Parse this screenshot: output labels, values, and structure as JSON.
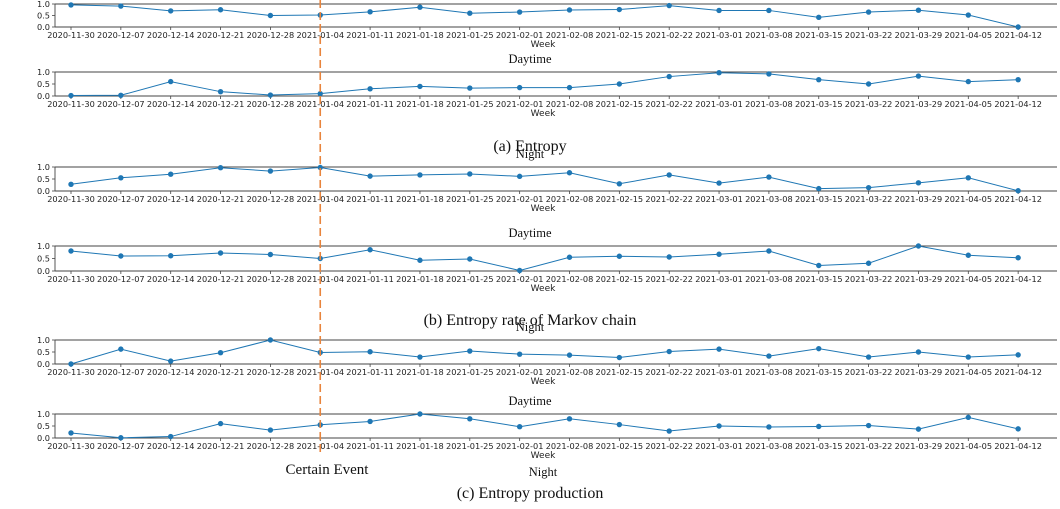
{
  "chart_data": [
    {
      "type": "line",
      "group": "(a) Entropy",
      "title": "",
      "xlabel": "Week",
      "ylabel": "",
      "ylim": [
        0,
        1
      ],
      "yticks": [
        "0.0",
        "0.5",
        "1.0"
      ],
      "categories": [
        "2020-11-30",
        "2020-12-07",
        "2020-12-14",
        "2020-12-21",
        "2020-12-28",
        "2021-01-04",
        "2021-01-11",
        "2021-01-18",
        "2021-01-25",
        "2021-02-01",
        "2021-02-08",
        "2021-02-15",
        "2021-02-22",
        "2021-03-01",
        "2021-03-08",
        "2021-03-15",
        "2021-03-22",
        "2021-03-29",
        "2021-04-05",
        "2021-04-12"
      ],
      "series": [
        {
          "values": [
            0.96,
            0.91,
            0.7,
            0.75,
            0.5,
            0.52,
            0.66,
            0.86,
            0.6,
            0.65,
            0.74,
            0.76,
            0.93,
            0.72,
            0.72,
            0.42,
            0.65,
            0.73,
            0.52,
            0.0
          ]
        }
      ],
      "grid": false
    },
    {
      "type": "line",
      "group": "(a) Entropy",
      "title": "Daytime",
      "xlabel": "Week",
      "ylabel": "",
      "ylim": [
        0,
        1
      ],
      "yticks": [
        "0.0",
        "0.5",
        "1.0"
      ],
      "categories": [
        "2020-11-30",
        "2020-12-07",
        "2020-12-14",
        "2020-12-21",
        "2020-12-28",
        "2021-01-04",
        "2021-01-11",
        "2021-01-18",
        "2021-01-25",
        "2021-02-01",
        "2021-02-08",
        "2021-02-15",
        "2021-02-22",
        "2021-03-01",
        "2021-03-08",
        "2021-03-15",
        "2021-03-22",
        "2021-03-29",
        "2021-04-05",
        "2021-04-12"
      ],
      "series": [
        {
          "values": [
            0.02,
            0.03,
            0.6,
            0.18,
            0.04,
            0.1,
            0.3,
            0.4,
            0.33,
            0.35,
            0.35,
            0.5,
            0.81,
            0.97,
            0.92,
            0.68,
            0.5,
            0.83,
            0.6,
            0.68
          ]
        }
      ],
      "grid": false
    },
    {
      "type": "line",
      "group": "(b) Entropy rate of Markov chain",
      "title": "Night",
      "xlabel": "Week",
      "ylabel": "",
      "ylim": [
        0,
        1
      ],
      "yticks": [
        "0.0",
        "0.5",
        "1.0"
      ],
      "categories": [
        "2020-11-30",
        "2020-12-07",
        "2020-12-14",
        "2020-12-21",
        "2020-12-28",
        "2021-01-04",
        "2021-01-11",
        "2021-01-18",
        "2021-01-25",
        "2021-02-01",
        "2021-02-08",
        "2021-02-15",
        "2021-02-22",
        "2021-03-01",
        "2021-03-08",
        "2021-03-15",
        "2021-03-22",
        "2021-03-29",
        "2021-04-05",
        "2021-04-12"
      ],
      "series": [
        {
          "values": [
            0.28,
            0.55,
            0.7,
            0.97,
            0.83,
            0.98,
            0.62,
            0.67,
            0.71,
            0.61,
            0.76,
            0.3,
            0.67,
            0.33,
            0.58,
            0.1,
            0.14,
            0.34,
            0.55,
            0.01
          ]
        }
      ],
      "grid": false
    },
    {
      "type": "line",
      "group": "(b) Entropy rate of Markov chain",
      "title": "Daytime",
      "xlabel": "Week",
      "ylabel": "",
      "ylim": [
        0,
        1
      ],
      "yticks": [
        "0.0",
        "0.5",
        "1.0"
      ],
      "categories": [
        "2020-11-30",
        "2020-12-07",
        "2020-12-14",
        "2020-12-21",
        "2020-12-28",
        "2021-01-04",
        "2021-01-11",
        "2021-01-18",
        "2021-01-25",
        "2021-02-01",
        "2021-02-08",
        "2021-02-15",
        "2021-02-22",
        "2021-03-01",
        "2021-03-08",
        "2021-03-15",
        "2021-03-22",
        "2021-03-29",
        "2021-04-05",
        "2021-04-12"
      ],
      "series": [
        {
          "values": [
            0.8,
            0.6,
            0.61,
            0.72,
            0.66,
            0.5,
            0.85,
            0.43,
            0.48,
            0.02,
            0.55,
            0.59,
            0.56,
            0.67,
            0.8,
            0.22,
            0.31,
            1.0,
            0.63,
            0.53
          ]
        }
      ],
      "grid": false
    },
    {
      "type": "line",
      "group": "(c) Entropy production",
      "title": "Night",
      "xlabel": "Week",
      "ylabel": "",
      "ylim": [
        0,
        1
      ],
      "yticks": [
        "0.0",
        "0.5",
        "1.0"
      ],
      "categories": [
        "2020-11-30",
        "2020-12-07",
        "2020-12-14",
        "2020-12-21",
        "2020-12-28",
        "2021-01-04",
        "2021-01-11",
        "2021-01-18",
        "2021-01-25",
        "2021-02-01",
        "2021-02-08",
        "2021-02-15",
        "2021-02-22",
        "2021-03-01",
        "2021-03-08",
        "2021-03-15",
        "2021-03-22",
        "2021-03-29",
        "2021-04-05",
        "2021-04-12"
      ],
      "series": [
        {
          "values": [
            0.0,
            0.62,
            0.12,
            0.47,
            1.0,
            0.48,
            0.51,
            0.29,
            0.54,
            0.41,
            0.37,
            0.27,
            0.52,
            0.62,
            0.33,
            0.64,
            0.29,
            0.5,
            0.29,
            0.38
          ]
        }
      ],
      "grid": false
    },
    {
      "type": "line",
      "group": "(c) Entropy production",
      "title": "Daytime",
      "xlabel": "Week",
      "ylabel": "",
      "ylim": [
        0,
        1
      ],
      "yticks": [
        "0.0",
        "0.5",
        "1.0"
      ],
      "categories": [
        "2020-11-30",
        "2020-12-07",
        "2020-12-14",
        "2020-12-21",
        "2020-12-28",
        "2021-01-04",
        "2021-01-11",
        "2021-01-18",
        "2021-01-25",
        "2021-02-01",
        "2021-02-08",
        "2021-02-15",
        "2021-02-22",
        "2021-03-01",
        "2021-03-08",
        "2021-03-15",
        "2021-03-22",
        "2021-03-29",
        "2021-04-05",
        "2021-04-12"
      ],
      "series": [
        {
          "values": [
            0.21,
            0.01,
            0.06,
            0.6,
            0.33,
            0.55,
            0.69,
            1.0,
            0.8,
            0.47,
            0.8,
            0.56,
            0.29,
            0.5,
            0.46,
            0.48,
            0.52,
            0.37,
            0.86,
            0.38
          ]
        }
      ],
      "grid": false
    }
  ],
  "bottom_label": "Night",
  "captions": [
    "(a) Entropy",
    "(b) Entropy rate of Markov chain",
    "(c) Entropy production"
  ],
  "event": {
    "label": "Certain Event",
    "week": "2021-01-04"
  },
  "colors": {
    "series": "#1f77b4",
    "event": "#e8843c",
    "axis": "#444444",
    "text": "#222222"
  }
}
